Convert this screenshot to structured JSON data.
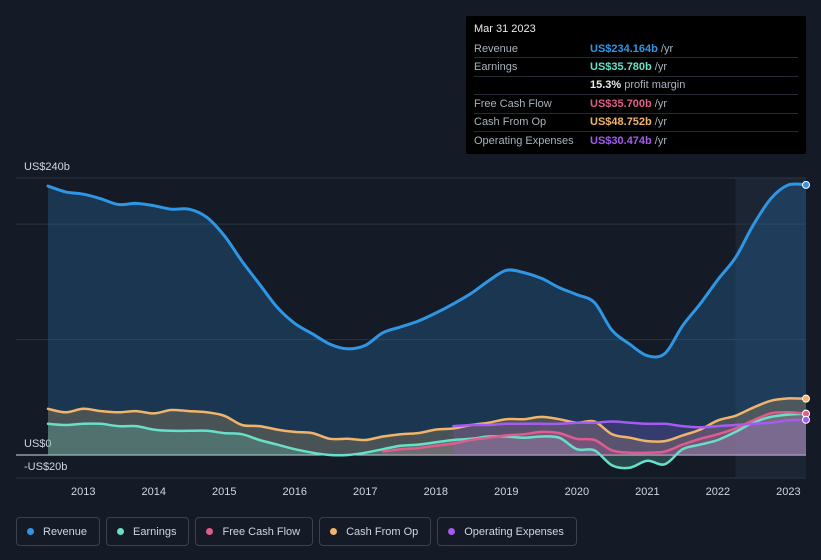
{
  "tooltip": {
    "date": "Mar 31 2023",
    "rows": [
      {
        "label": "Revenue",
        "value": "US$234.164b",
        "unit": "/yr",
        "color": "#2f96e6"
      },
      {
        "label": "Earnings",
        "value": "US$35.780b",
        "unit": "/yr",
        "color": "#68e0c8"
      },
      {
        "label": "",
        "value": "15.3%",
        "unit": "profit margin",
        "color": "#e8ecf0"
      },
      {
        "label": "Free Cash Flow",
        "value": "US$35.700b",
        "unit": "/yr",
        "color": "#e05c8c"
      },
      {
        "label": "Cash From Op",
        "value": "US$48.752b",
        "unit": "/yr",
        "color": "#f0b46a"
      },
      {
        "label": "Operating Expenses",
        "value": "US$30.474b",
        "unit": "/yr",
        "color": "#a55af0"
      }
    ]
  },
  "legend": [
    {
      "label": "Revenue",
      "color": "#2f96e6"
    },
    {
      "label": "Earnings",
      "color": "#68e0c8"
    },
    {
      "label": "Free Cash Flow",
      "color": "#e05c8c"
    },
    {
      "label": "Cash From Op",
      "color": "#f0b46a"
    },
    {
      "label": "Operating Expenses",
      "color": "#a55af0"
    }
  ],
  "chart_data": {
    "type": "area",
    "title": "",
    "xlabel": "",
    "ylabel": "",
    "ylim": [
      -20,
      240
    ],
    "xlim": [
      2012.5,
      2023.25
    ],
    "y_tick_labels": [
      {
        "value": 240,
        "label": "US$240b"
      },
      {
        "value": 0,
        "label": "US$0"
      },
      {
        "value": -20,
        "label": "-US$20b"
      }
    ],
    "x_tick_labels": [
      "2013",
      "2014",
      "2015",
      "2016",
      "2017",
      "2018",
      "2019",
      "2020",
      "2021",
      "2022",
      "2023"
    ],
    "highlight_range": [
      2022.25,
      2023.25
    ],
    "series": [
      {
        "name": "Revenue",
        "color": "#2f96e6",
        "x": [
          2012.5,
          2012.75,
          2013.0,
          2013.25,
          2013.5,
          2013.75,
          2014.0,
          2014.25,
          2014.5,
          2014.75,
          2015.0,
          2015.25,
          2015.5,
          2015.75,
          2016.0,
          2016.25,
          2016.5,
          2016.75,
          2017.0,
          2017.25,
          2017.5,
          2017.75,
          2018.0,
          2018.25,
          2018.5,
          2018.75,
          2019.0,
          2019.25,
          2019.5,
          2019.75,
          2020.0,
          2020.25,
          2020.5,
          2020.75,
          2021.0,
          2021.25,
          2021.5,
          2021.75,
          2022.0,
          2022.25,
          2022.5,
          2022.75,
          2023.0,
          2023.25
        ],
        "values": [
          233,
          228,
          226,
          222,
          217,
          218,
          216,
          213,
          213,
          206,
          190,
          168,
          148,
          128,
          114,
          105,
          96,
          92,
          95,
          106,
          111,
          116,
          123,
          131,
          140,
          151,
          160,
          158,
          153,
          145,
          139,
          132,
          108,
          96,
          86,
          88,
          112,
          131,
          152,
          171,
          199,
          222,
          234,
          234
        ]
      },
      {
        "name": "Earnings",
        "color": "#68e0c8",
        "x": [
          2012.5,
          2012.75,
          2013.0,
          2013.25,
          2013.5,
          2013.75,
          2014.0,
          2014.25,
          2014.5,
          2014.75,
          2015.0,
          2015.25,
          2015.5,
          2015.75,
          2016.0,
          2016.25,
          2016.5,
          2016.75,
          2017.0,
          2017.25,
          2017.5,
          2017.75,
          2018.0,
          2018.25,
          2018.5,
          2018.75,
          2019.0,
          2019.25,
          2019.5,
          2019.75,
          2020.0,
          2020.25,
          2020.5,
          2020.75,
          2021.0,
          2021.25,
          2021.5,
          2021.75,
          2022.0,
          2022.25,
          2022.5,
          2022.75,
          2023.0,
          2023.25
        ],
        "values": [
          27,
          26,
          27,
          27,
          25,
          25,
          22,
          21,
          21,
          21,
          19,
          18,
          13,
          9,
          5,
          2,
          0,
          0,
          2,
          5,
          8,
          9,
          11,
          13,
          14,
          16,
          16,
          15,
          16,
          15,
          5,
          4,
          -9,
          -11,
          -5,
          -8,
          5,
          9,
          13,
          20,
          28,
          33,
          35,
          35.8
        ]
      },
      {
        "name": "Free Cash Flow",
        "color": "#e05c8c",
        "x": [
          2017.25,
          2017.5,
          2017.75,
          2018.0,
          2018.25,
          2018.5,
          2018.75,
          2019.0,
          2019.25,
          2019.5,
          2019.75,
          2020.0,
          2020.25,
          2020.5,
          2020.75,
          2021.0,
          2021.25,
          2021.5,
          2021.75,
          2022.0,
          2022.25,
          2022.5,
          2022.75,
          2023.0,
          2023.25
        ],
        "values": [
          3,
          5,
          6,
          8,
          10,
          13,
          15,
          17,
          18,
          20,
          19,
          14,
          13,
          4,
          2,
          2,
          3,
          9,
          14,
          18,
          23,
          30,
          36,
          37,
          35.7
        ]
      },
      {
        "name": "Cash From Op",
        "color": "#f0b46a",
        "x": [
          2012.5,
          2012.75,
          2013.0,
          2013.25,
          2013.5,
          2013.75,
          2014.0,
          2014.25,
          2014.5,
          2014.75,
          2015.0,
          2015.25,
          2015.5,
          2015.75,
          2016.0,
          2016.25,
          2016.5,
          2016.75,
          2017.0,
          2017.25,
          2017.5,
          2017.75,
          2018.0,
          2018.25,
          2018.5,
          2018.75,
          2019.0,
          2019.25,
          2019.5,
          2019.75,
          2020.0,
          2020.25,
          2020.5,
          2020.75,
          2021.0,
          2021.25,
          2021.5,
          2021.75,
          2022.0,
          2022.25,
          2022.5,
          2022.75,
          2023.0,
          2023.25
        ],
        "values": [
          40,
          37,
          40,
          38,
          37,
          38,
          36,
          39,
          38,
          37,
          34,
          26,
          25,
          22,
          20,
          19,
          14,
          14,
          13,
          16,
          18,
          19,
          22,
          23,
          26,
          28,
          31,
          31,
          33,
          31,
          28,
          29,
          18,
          15,
          12,
          12,
          17,
          22,
          30,
          34,
          41,
          47,
          49,
          48.8
        ]
      },
      {
        "name": "Operating Expenses",
        "color": "#a55af0",
        "x": [
          2018.25,
          2018.5,
          2018.75,
          2019.0,
          2019.25,
          2019.5,
          2019.75,
          2020.0,
          2020.25,
          2020.5,
          2020.75,
          2021.0,
          2021.25,
          2021.5,
          2021.75,
          2022.0,
          2022.25,
          2022.5,
          2022.75,
          2023.0,
          2023.25
        ],
        "values": [
          25,
          26,
          26,
          27,
          27,
          27,
          27,
          28,
          28,
          29,
          28,
          27,
          27,
          25,
          24,
          25,
          26,
          27,
          28,
          30,
          30.5
        ]
      }
    ]
  }
}
